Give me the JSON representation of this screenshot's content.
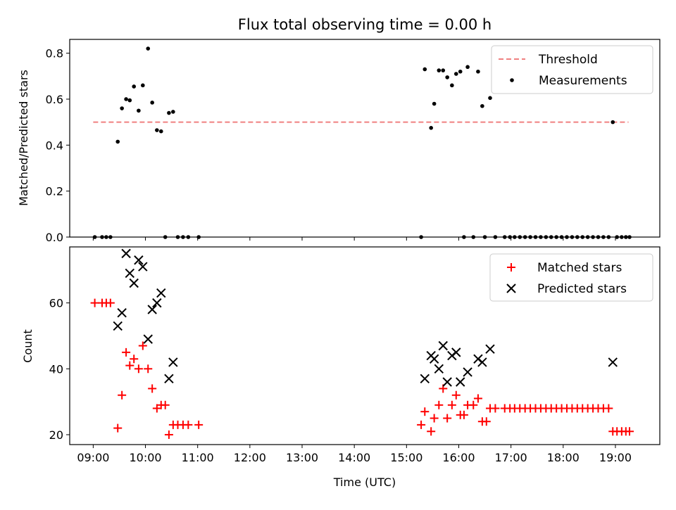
{
  "chart_data": [
    {
      "type": "scatter",
      "title": "Flux total observing time = 0.00 h",
      "ylabel": "Matched/Predicted stars",
      "xlabel": "",
      "xlim": [
        8.55,
        19.85
      ],
      "ylim": [
        0.0,
        0.86
      ],
      "yticks": [
        0.0,
        0.2,
        0.4,
        0.6,
        0.8
      ],
      "ytick_labels": [
        "0.0",
        "0.2",
        "0.4",
        "0.6",
        "0.8"
      ],
      "grid": false,
      "legend": "top-right",
      "threshold": {
        "name": "Threshold",
        "color": "#f08080",
        "y": 0.5,
        "x": [
          9.0,
          19.25
        ]
      },
      "series": [
        {
          "name": "Measurements",
          "color": "#000000",
          "marker": "dot",
          "points": [
            [
              9.03,
              0.0
            ],
            [
              9.17,
              0.0
            ],
            [
              9.25,
              0.0
            ],
            [
              9.33,
              0.0
            ],
            [
              9.47,
              0.415
            ],
            [
              9.55,
              0.56
            ],
            [
              9.63,
              0.6
            ],
            [
              9.7,
              0.595
            ],
            [
              9.78,
              0.655
            ],
            [
              9.87,
              0.55
            ],
            [
              9.95,
              0.66
            ],
            [
              10.05,
              0.82
            ],
            [
              10.13,
              0.585
            ],
            [
              10.22,
              0.465
            ],
            [
              10.3,
              0.46
            ],
            [
              10.38,
              0.0
            ],
            [
              10.45,
              0.54
            ],
            [
              10.53,
              0.545
            ],
            [
              10.62,
              0.0
            ],
            [
              10.72,
              0.0
            ],
            [
              10.82,
              0.0
            ],
            [
              11.02,
              0.0
            ],
            [
              15.28,
              0.0
            ],
            [
              15.35,
              0.73
            ],
            [
              15.47,
              0.475
            ],
            [
              15.53,
              0.58
            ],
            [
              15.62,
              0.725
            ],
            [
              15.7,
              0.725
            ],
            [
              15.78,
              0.695
            ],
            [
              15.87,
              0.66
            ],
            [
              15.95,
              0.71
            ],
            [
              16.03,
              0.72
            ],
            [
              16.1,
              0.0
            ],
            [
              16.17,
              0.74
            ],
            [
              16.28,
              0.0
            ],
            [
              16.37,
              0.72
            ],
            [
              16.45,
              0.57
            ],
            [
              16.5,
              0.0
            ],
            [
              16.6,
              0.605
            ],
            [
              16.7,
              0.0
            ],
            [
              16.88,
              0.0
            ],
            [
              16.98,
              0.0
            ],
            [
              17.07,
              0.0
            ],
            [
              17.17,
              0.0
            ],
            [
              17.27,
              0.0
            ],
            [
              17.37,
              0.0
            ],
            [
              17.47,
              0.0
            ],
            [
              17.57,
              0.0
            ],
            [
              17.67,
              0.0
            ],
            [
              17.77,
              0.0
            ],
            [
              17.87,
              0.0
            ],
            [
              17.97,
              0.0
            ],
            [
              18.07,
              0.0
            ],
            [
              18.17,
              0.0
            ],
            [
              18.27,
              0.0
            ],
            [
              18.37,
              0.0
            ],
            [
              18.47,
              0.0
            ],
            [
              18.57,
              0.0
            ],
            [
              18.67,
              0.0
            ],
            [
              18.77,
              0.0
            ],
            [
              18.87,
              0.0
            ],
            [
              18.95,
              0.5
            ],
            [
              19.03,
              0.0
            ],
            [
              19.12,
              0.0
            ],
            [
              19.2,
              0.0
            ],
            [
              19.27,
              0.0
            ]
          ]
        }
      ]
    },
    {
      "type": "scatter",
      "title": "",
      "ylabel": "Count",
      "xlabel": "Time (UTC)",
      "xlim": [
        8.55,
        19.85
      ],
      "ylim": [
        17,
        77
      ],
      "yticks": [
        20,
        40,
        60
      ],
      "ytick_labels": [
        "20",
        "40",
        "60"
      ],
      "xticks": [
        9,
        10,
        11,
        12,
        13,
        14,
        15,
        16,
        17,
        18,
        19
      ],
      "xtick_labels": [
        "09:00",
        "10:00",
        "11:00",
        "12:00",
        "13:00",
        "14:00",
        "15:00",
        "16:00",
        "17:00",
        "18:00",
        "19:00"
      ],
      "grid": false,
      "legend": "top-right",
      "series": [
        {
          "name": "Matched stars",
          "color": "#ff0000",
          "marker": "plus",
          "points": [
            [
              9.03,
              60
            ],
            [
              9.17,
              60
            ],
            [
              9.25,
              60
            ],
            [
              9.33,
              60
            ],
            [
              9.47,
              22
            ],
            [
              9.55,
              32
            ],
            [
              9.63,
              45
            ],
            [
              9.7,
              41
            ],
            [
              9.78,
              43
            ],
            [
              9.87,
              40
            ],
            [
              9.95,
              47
            ],
            [
              10.05,
              40
            ],
            [
              10.13,
              34
            ],
            [
              10.22,
              28
            ],
            [
              10.3,
              29
            ],
            [
              10.38,
              29
            ],
            [
              10.45,
              20
            ],
            [
              10.53,
              23
            ],
            [
              10.62,
              23
            ],
            [
              10.72,
              23
            ],
            [
              10.82,
              23
            ],
            [
              11.02,
              23
            ],
            [
              15.28,
              23
            ],
            [
              15.35,
              27
            ],
            [
              15.47,
              21
            ],
            [
              15.53,
              25
            ],
            [
              15.62,
              29
            ],
            [
              15.7,
              34
            ],
            [
              15.78,
              25
            ],
            [
              15.87,
              29
            ],
            [
              15.95,
              32
            ],
            [
              16.03,
              26
            ],
            [
              16.1,
              26
            ],
            [
              16.17,
              29
            ],
            [
              16.28,
              29
            ],
            [
              16.37,
              31
            ],
            [
              16.45,
              24
            ],
            [
              16.53,
              24
            ],
            [
              16.6,
              28
            ],
            [
              16.7,
              28
            ],
            [
              16.88,
              28
            ],
            [
              16.98,
              28
            ],
            [
              17.07,
              28
            ],
            [
              17.17,
              28
            ],
            [
              17.27,
              28
            ],
            [
              17.37,
              28
            ],
            [
              17.47,
              28
            ],
            [
              17.57,
              28
            ],
            [
              17.67,
              28
            ],
            [
              17.77,
              28
            ],
            [
              17.87,
              28
            ],
            [
              17.97,
              28
            ],
            [
              18.07,
              28
            ],
            [
              18.17,
              28
            ],
            [
              18.27,
              28
            ],
            [
              18.37,
              28
            ],
            [
              18.47,
              28
            ],
            [
              18.57,
              28
            ],
            [
              18.67,
              28
            ],
            [
              18.77,
              28
            ],
            [
              18.87,
              28
            ],
            [
              18.95,
              21
            ],
            [
              19.03,
              21
            ],
            [
              19.12,
              21
            ],
            [
              19.2,
              21
            ],
            [
              19.27,
              21
            ]
          ]
        },
        {
          "name": "Predicted stars",
          "color": "#000000",
          "marker": "x",
          "points": [
            [
              9.47,
              53
            ],
            [
              9.55,
              57
            ],
            [
              9.63,
              75
            ],
            [
              9.7,
              69
            ],
            [
              9.78,
              66
            ],
            [
              9.87,
              73
            ],
            [
              9.95,
              71
            ],
            [
              10.05,
              49
            ],
            [
              10.13,
              58
            ],
            [
              10.22,
              60
            ],
            [
              10.3,
              63
            ],
            [
              10.45,
              37
            ],
            [
              10.53,
              42
            ],
            [
              15.35,
              37
            ],
            [
              15.47,
              44
            ],
            [
              15.53,
              43
            ],
            [
              15.62,
              40
            ],
            [
              15.7,
              47
            ],
            [
              15.78,
              36
            ],
            [
              15.87,
              44
            ],
            [
              15.95,
              45
            ],
            [
              16.03,
              36
            ],
            [
              16.17,
              39
            ],
            [
              16.37,
              43
            ],
            [
              16.45,
              42
            ],
            [
              16.6,
              46
            ],
            [
              18.95,
              42
            ]
          ]
        }
      ]
    }
  ]
}
